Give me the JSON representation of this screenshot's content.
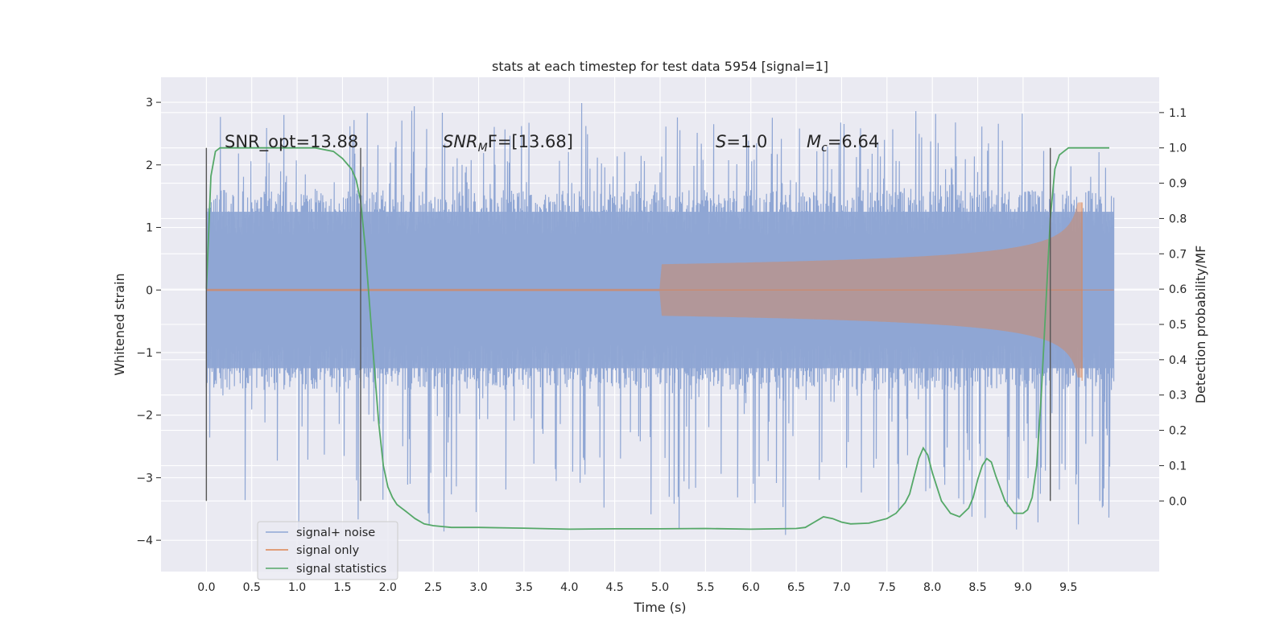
{
  "chart_data": {
    "type": "line",
    "title": "stats at each timestep for test data 5954 [signal=1]",
    "xlabel": "Time (s)",
    "ylabel": "Whitened strain",
    "y2label": "Detection probability/MF",
    "xlim": [
      -0.5,
      10.5
    ],
    "ylim": [
      -4.5,
      3.4
    ],
    "y2lim": [
      -0.2,
      1.2
    ],
    "x_ticks": [
      "0.0",
      "0.5",
      "1.0",
      "1.5",
      "2.0",
      "2.5",
      "3.0",
      "3.5",
      "4.0",
      "4.5",
      "5.0",
      "5.5",
      "6.0",
      "6.5",
      "7.0",
      "7.5",
      "8.0",
      "8.5",
      "9.0",
      "9.5"
    ],
    "y_ticks": [
      "3",
      "2",
      "1",
      "0",
      "−1",
      "−2",
      "−3",
      "−4"
    ],
    "y2_ticks": [
      "1.1",
      "1.0",
      "0.9",
      "0.8",
      "0.7",
      "0.6",
      "0.5",
      "0.4",
      "0.3",
      "0.2",
      "0.1",
      "0.0"
    ],
    "grid": true,
    "legend_position": "lower-left",
    "annotations": {
      "snr_opt": "SNR_opt=13.88",
      "snr_mf_main": "SNR",
      "snr_mf_sub": "M",
      "snr_mf_rest": "F=[13.68]",
      "s_main": "S",
      "s_rest": "=1.0",
      "mc_main": "M",
      "mc_sub": "c",
      "mc_rest": "=6.64"
    },
    "vlines_x": [
      0.0,
      1.7,
      9.3
    ],
    "series": [
      {
        "name": "signal+ noise",
        "color": "#8fa6d4",
        "x_range": [
          0.0,
          10.0
        ],
        "envelope_y": [
          -1.6,
          1.6
        ],
        "peak_y": [
          -4.05,
          3.05
        ]
      },
      {
        "name": "signal only",
        "color": "#dd8452",
        "x_range": [
          0.0,
          9.65
        ],
        "chirp_start_x": 5.0,
        "peak_y": [
          -1.45,
          1.4
        ]
      },
      {
        "name": "signal statistics",
        "color": "#55a868",
        "axis": "right",
        "x": [
          0.0,
          0.05,
          0.1,
          0.15,
          0.2,
          0.3,
          0.5,
          1.0,
          1.2,
          1.4,
          1.5,
          1.6,
          1.65,
          1.7,
          1.75,
          1.8,
          1.85,
          1.9,
          1.95,
          2.0,
          2.05,
          2.1,
          2.15,
          2.2,
          2.3,
          2.4,
          2.5,
          2.7,
          3.0,
          3.5,
          4.0,
          4.5,
          5.0,
          5.5,
          6.0,
          6.5,
          6.6,
          6.7,
          6.8,
          6.9,
          7.0,
          7.1,
          7.3,
          7.5,
          7.6,
          7.7,
          7.75,
          7.8,
          7.85,
          7.9,
          7.95,
          8.0,
          8.05,
          8.1,
          8.2,
          8.3,
          8.4,
          8.45,
          8.5,
          8.55,
          8.6,
          8.65,
          8.7,
          8.8,
          8.9,
          9.0,
          9.05,
          9.1,
          9.15,
          9.2,
          9.25,
          9.3,
          9.35,
          9.4,
          9.45,
          9.5,
          9.6,
          9.8,
          9.95
        ],
        "values": [
          0.6,
          0.92,
          0.99,
          1.0,
          1.0,
          1.0,
          1.0,
          1.0,
          1.0,
          0.99,
          0.97,
          0.94,
          0.91,
          0.85,
          0.72,
          0.55,
          0.38,
          0.22,
          0.1,
          0.04,
          0.01,
          -0.01,
          -0.02,
          -0.03,
          -0.05,
          -0.065,
          -0.07,
          -0.075,
          -0.075,
          -0.077,
          -0.08,
          -0.079,
          -0.079,
          -0.078,
          -0.08,
          -0.078,
          -0.075,
          -0.06,
          -0.045,
          -0.05,
          -0.06,
          -0.065,
          -0.063,
          -0.05,
          -0.035,
          -0.005,
          0.02,
          0.07,
          0.12,
          0.15,
          0.13,
          0.08,
          0.04,
          0.0,
          -0.035,
          -0.045,
          -0.02,
          0.01,
          0.06,
          0.1,
          0.12,
          0.11,
          0.07,
          0.0,
          -0.035,
          -0.035,
          -0.025,
          0.01,
          0.1,
          0.3,
          0.55,
          0.8,
          0.94,
          0.98,
          0.99,
          1.0,
          1.0,
          1.0,
          1.0
        ]
      }
    ]
  }
}
